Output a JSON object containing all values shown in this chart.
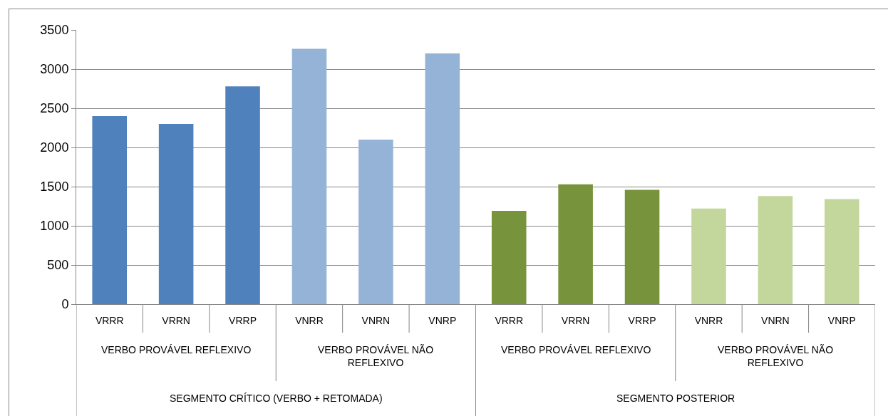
{
  "chart_data": {
    "type": "bar",
    "categories": [
      "VRRR",
      "VRRN",
      "VRRP",
      "VNRR",
      "VNRN",
      "VNRP",
      "VRRR",
      "VRRN",
      "VRRP",
      "VNRR",
      "VNRN",
      "VNRP"
    ],
    "values": [
      2400,
      2300,
      2780,
      3260,
      2100,
      3200,
      1190,
      1530,
      1460,
      1220,
      1380,
      1340
    ],
    "colors": [
      "#4f81bd",
      "#4f81bd",
      "#4f81bd",
      "#95b3d7",
      "#95b3d7",
      "#95b3d7",
      "#77933c",
      "#77933c",
      "#77933c",
      "#c3d69b",
      "#c3d69b",
      "#c3d69b"
    ],
    "ylim": [
      0,
      3500
    ],
    "yticks": [
      0,
      500,
      1000,
      1500,
      2000,
      2500,
      3000,
      3500
    ],
    "grid": "y",
    "annotations": [
      "VERBO PROVÁVEL REFLEXIVO",
      "VERBO PROVÁVEL NÃO REFLEXIVO",
      "VERBO PROVÁVEL REFLEXIVO",
      "VERBO PROVÁVEL NÃO REFLEXIVO",
      "SEGMENTO CRÍTICO (VERBO + RETOMADA)",
      "SEGMENTO POSTERIOR"
    ]
  }
}
